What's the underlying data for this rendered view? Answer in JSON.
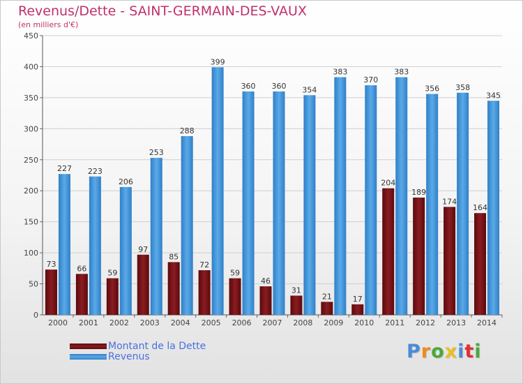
{
  "title": "Revenus/Dette - SAINT-GERMAIN-DES-VAUX",
  "subtitle": "(en milliers d'€)",
  "logo": {
    "text": "Proxiti",
    "colors": [
      "#4a8bd8",
      "#f08a1a",
      "#4aa83a",
      "#e8c020",
      "#4a8bd8",
      "#e03030",
      "#4aa83a"
    ]
  },
  "colors": {
    "dette": "#7a1216",
    "revenus": "#3f95dc",
    "title": "#c0306a",
    "legend_text": "#4a6fe0"
  },
  "chart_data": {
    "type": "bar",
    "title": "Revenus/Dette - SAINT-GERMAIN-DES-VAUX",
    "ylabel": "(en milliers d'€)",
    "categories": [
      "2000",
      "2001",
      "2002",
      "2003",
      "2004",
      "2005",
      "2006",
      "2007",
      "2008",
      "2009",
      "2010",
      "2011",
      "2012",
      "2013",
      "2014"
    ],
    "series": [
      {
        "name": "Montant de la Dette",
        "values": [
          73,
          66,
          59,
          97,
          85,
          72,
          59,
          46,
          31,
          21,
          17,
          204,
          189,
          174,
          164
        ]
      },
      {
        "name": "Revenus",
        "values": [
          227,
          223,
          206,
          253,
          288,
          399,
          360,
          360,
          354,
          383,
          370,
          383,
          356,
          358,
          345
        ]
      }
    ],
    "ylim": [
      0,
      450
    ],
    "yticks": [
      0,
      50,
      100,
      150,
      200,
      250,
      300,
      350,
      400,
      450
    ],
    "grid": true,
    "legend": "bottom-left"
  },
  "legend": [
    {
      "label": "Montant de la Dette"
    },
    {
      "label": "Revenus"
    }
  ]
}
